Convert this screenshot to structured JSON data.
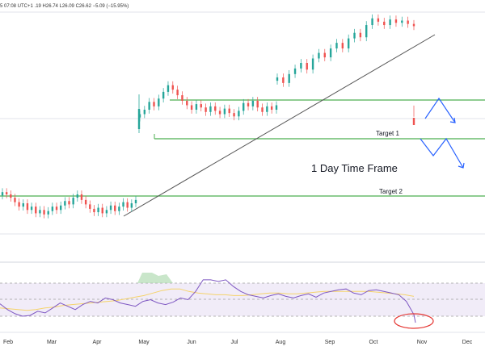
{
  "header": {
    "ohlc": "5 07:08 UTC+1   .19  H26.74  L26.09  C26.62  −5.09 (−15.95%)"
  },
  "annotations": {
    "target1": "Target 1",
    "target2": "Target 2",
    "timeframe": "1 Day Time Frame"
  },
  "colors": {
    "up": "#26a69a",
    "down": "#ef5350",
    "level": "#4caf50",
    "trend": "#555555",
    "arrow": "#2962ff",
    "rsi": "#7e57c2",
    "rsi_ma": "#f5d36b",
    "circle": "#e53935"
  },
  "chart_data": [
    {
      "type": "candlestick",
      "title": "",
      "x_ticks": [
        "Feb",
        "Mar",
        "Apr",
        "May",
        "Jun",
        "Jul",
        "Aug",
        "Sep",
        "Oct",
        "Nov",
        "Dec"
      ],
      "levels": [
        {
          "label": "Target 1",
          "price": 26.0
        },
        {
          "label": "Target 2",
          "price": 19.0
        },
        {
          "label": "",
          "price": 28.5
        }
      ],
      "price_range": [
        14,
        35
      ],
      "series": [
        {
          "segment": "Feb-Apr",
          "closes": [
            19.2,
            19.0,
            18.7,
            18.3,
            17.9,
            18.2,
            17.6,
            17.9,
            17.3,
            17.6,
            17.2,
            17.5,
            17.9,
            17.6,
            18.0,
            18.4,
            18.1,
            18.7,
            19.0,
            18.5,
            18.1,
            17.7,
            17.4,
            17.8,
            17.3,
            17.6,
            18.0,
            17.5,
            17.9,
            18.3,
            17.8,
            18.2,
            18.5
          ]
        },
        {
          "segment": "May-Jul",
          "closes": [
            26.2,
            26.6,
            27.3,
            26.9,
            27.6,
            28.2,
            28.8,
            28.4,
            27.9,
            27.4,
            27.0,
            26.6,
            27.1,
            26.8,
            26.4,
            26.9,
            26.5,
            26.2,
            26.7,
            26.3,
            26.0,
            26.5,
            27.2,
            26.9,
            27.4,
            26.8,
            26.4,
            26.9,
            26.6,
            27.0
          ]
        },
        {
          "segment": "Aug-Oct",
          "closes": [
            29.5,
            29.0,
            29.8,
            30.3,
            30.8,
            30.2,
            31.2,
            31.7,
            31.3,
            32.1,
            32.6,
            32.1,
            33.0,
            33.5,
            33.1,
            34.2,
            34.8,
            34.5,
            34.2,
            34.7,
            34.4,
            34.6,
            34.3,
            34.1
          ]
        },
        {
          "segment": "latest",
          "closes": [
            26.62
          ]
        }
      ]
    },
    {
      "type": "line",
      "title": "",
      "series": [
        {
          "name": "",
          "values": [
            45,
            38,
            33,
            30,
            31,
            36,
            34,
            40,
            46,
            42,
            38,
            44,
            48,
            46,
            52,
            50,
            46,
            44,
            42,
            48,
            50,
            46,
            44,
            47,
            52,
            50,
            60,
            74,
            74,
            72,
            74,
            66,
            60,
            56,
            54,
            52,
            55,
            57,
            54,
            52,
            55,
            57,
            53,
            58,
            60,
            62,
            63,
            58,
            56,
            61,
            62,
            60,
            58,
            56,
            48,
            32
          ]
        },
        {
          "name": "",
          "values": [
            40,
            39,
            38,
            37,
            38,
            40,
            41,
            43,
            44,
            45,
            46,
            47,
            48,
            49,
            51,
            53,
            55,
            58,
            61,
            63,
            63,
            60,
            58,
            57,
            56,
            56,
            55,
            55,
            56,
            57,
            58,
            58,
            57,
            57,
            58,
            59,
            60,
            60,
            60,
            60,
            60,
            60,
            59,
            58,
            57,
            56,
            54
          ]
        }
      ]
    }
  ]
}
